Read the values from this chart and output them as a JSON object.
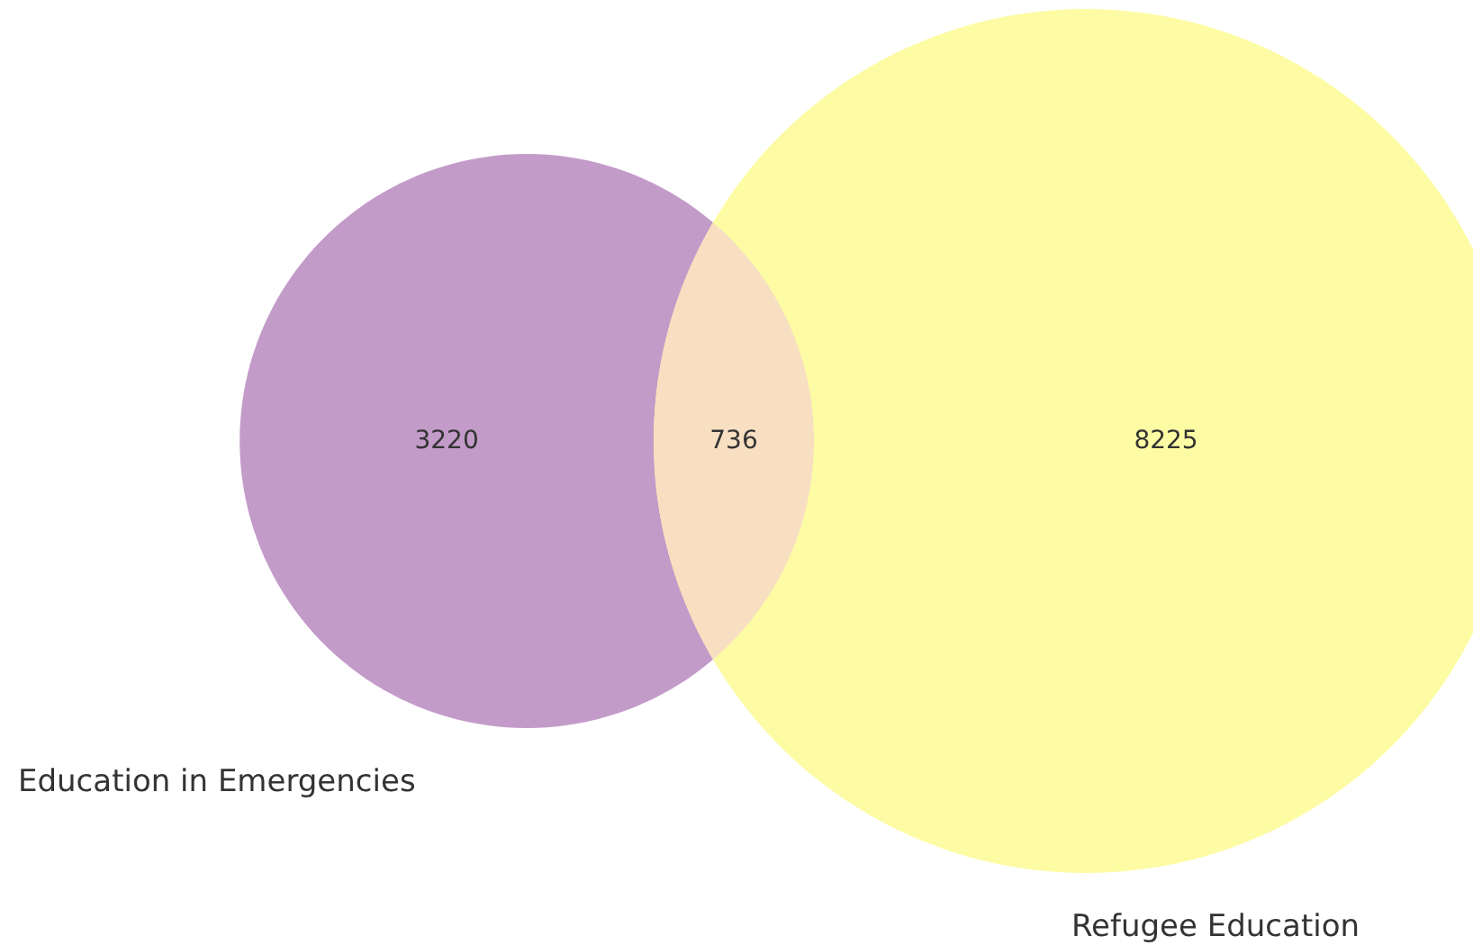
{
  "chart_data": {
    "type": "other",
    "categories": [
      "Education in Emergencies",
      null,
      "Refugee Education"
    ],
    "values": [
      3220,
      736,
      8225
    ],
    "colors": [
      "#c39bc9",
      "#f8dfc2",
      "#fdfca4"
    ],
    "data_labels": true
  }
}
